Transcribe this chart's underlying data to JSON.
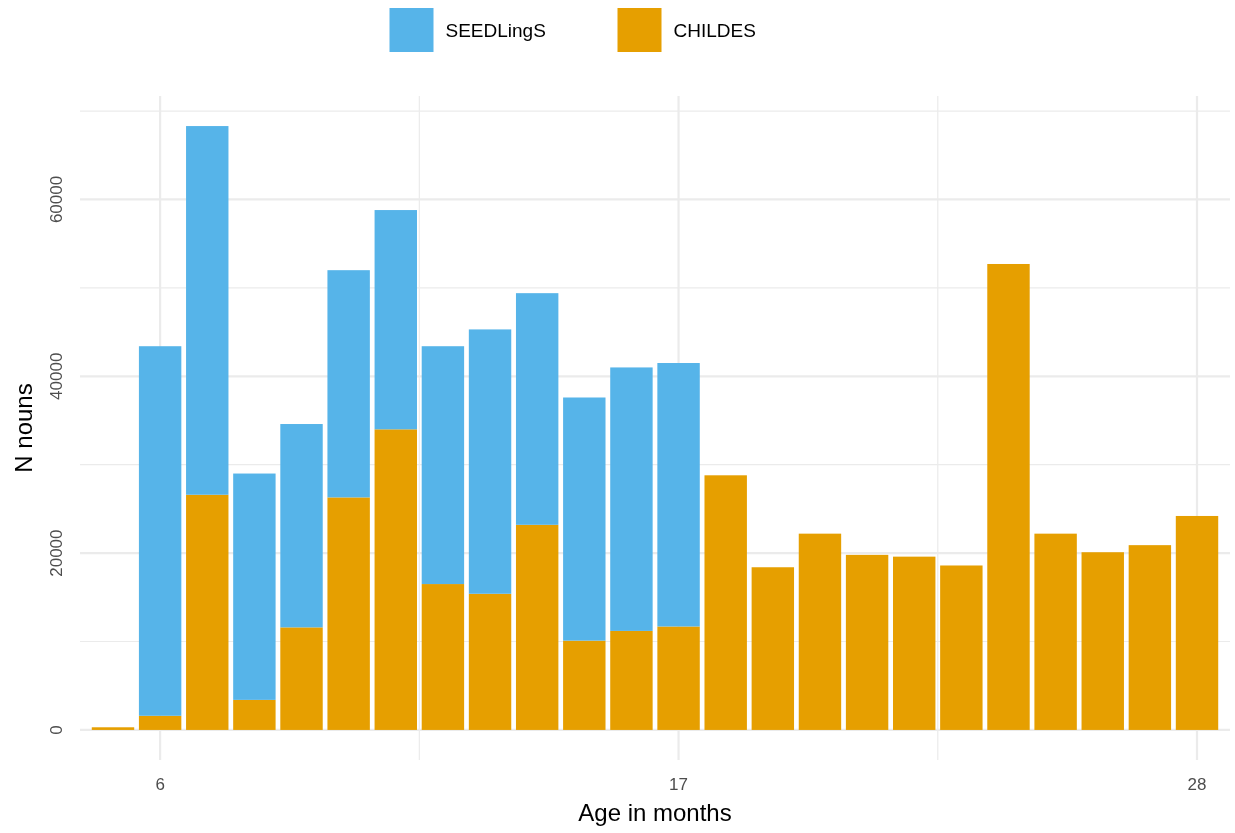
{
  "chart_data": {
    "type": "bar",
    "stacked": true,
    "xlabel": "Age in months",
    "ylabel": "N nouns",
    "x": [
      5,
      6,
      7,
      8,
      9,
      10,
      11,
      12,
      13,
      14,
      15,
      16,
      17,
      18,
      19,
      20,
      21,
      22,
      23,
      24,
      25,
      26,
      27,
      28
    ],
    "series": [
      {
        "name": "CHILDES",
        "color": "#e69f00",
        "values": [
          300,
          1600,
          26600,
          3400,
          11600,
          26300,
          34000,
          16500,
          15400,
          23200,
          10100,
          11200,
          11700,
          28800,
          18400,
          22200,
          19800,
          19600,
          18600,
          52700,
          22200,
          20100,
          20900,
          24200
        ]
      },
      {
        "name": "SEEDLingS",
        "color": "#56b4e9",
        "values": [
          null,
          41800,
          41700,
          25600,
          23000,
          25700,
          24800,
          26900,
          29900,
          26200,
          27500,
          29800,
          29800,
          null,
          null,
          null,
          null,
          null,
          null,
          null,
          null,
          null,
          null,
          null
        ]
      }
    ],
    "xlim": [
      4.3,
      28.7
    ],
    "xticks": [
      6,
      {
        "value": 11.5,
        "label": null
      },
      17,
      {
        "value": 22.5,
        "label": null
      },
      28
    ],
    "ylim": [
      -3400,
      71700
    ],
    "yticks": [
      0,
      {
        "value": 10000,
        "label": null
      },
      20000,
      {
        "value": 30000,
        "label": null
      },
      40000,
      {
        "value": 50000,
        "label": null
      },
      60000,
      {
        "value": 70000,
        "label": null
      }
    ],
    "grid": true,
    "legend": "top"
  }
}
